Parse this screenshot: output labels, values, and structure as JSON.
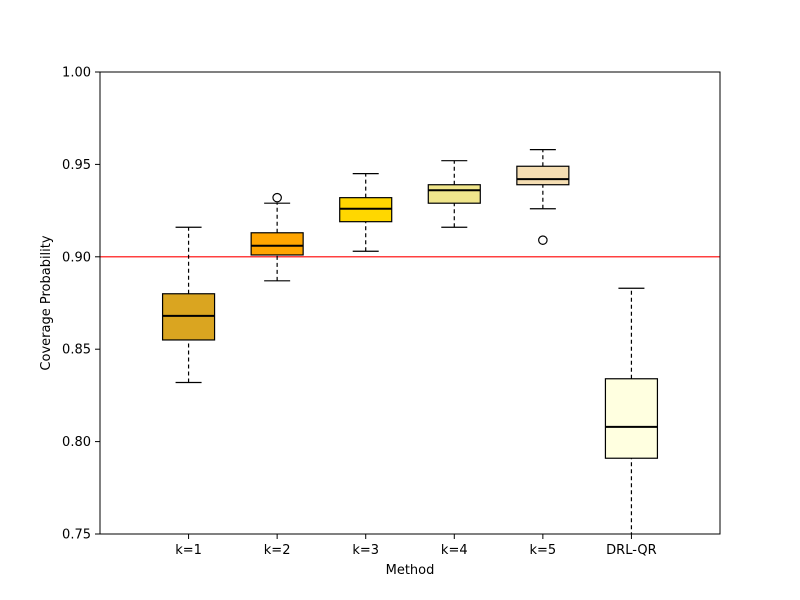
{
  "chart_data": {
    "type": "box",
    "title": "",
    "xlabel": "Method",
    "ylabel": "Coverage Probability",
    "ylim": [
      0.75,
      1.0
    ],
    "yticks": [
      0.75,
      0.8,
      0.85,
      0.9,
      0.95,
      1.0
    ],
    "ytick_labels": [
      "0.75",
      "0.80",
      "0.85",
      "0.90",
      "0.95",
      "1.00"
    ],
    "reference_line": {
      "y": 0.9,
      "color": "#ff0000"
    },
    "categories": [
      "k=1",
      "k=2",
      "k=3",
      "k=4",
      "k=5",
      "DRL-QR"
    ],
    "boxes": [
      {
        "label": "k=1",
        "whisker_low": 0.832,
        "q1": 0.855,
        "median": 0.868,
        "q3": 0.88,
        "whisker_high": 0.916,
        "outliers": [],
        "color": "#daa520"
      },
      {
        "label": "k=2",
        "whisker_low": 0.887,
        "q1": 0.901,
        "median": 0.906,
        "q3": 0.913,
        "whisker_high": 0.929,
        "outliers": [
          0.932
        ],
        "color": "#ffa500"
      },
      {
        "label": "k=3",
        "whisker_low": 0.903,
        "q1": 0.919,
        "median": 0.926,
        "q3": 0.932,
        "whisker_high": 0.945,
        "outliers": [],
        "color": "#ffd700"
      },
      {
        "label": "k=4",
        "whisker_low": 0.916,
        "q1": 0.929,
        "median": 0.936,
        "q3": 0.939,
        "whisker_high": 0.952,
        "outliers": [],
        "color": "#f0e68c"
      },
      {
        "label": "k=5",
        "whisker_low": 0.926,
        "q1": 0.939,
        "median": 0.942,
        "q3": 0.949,
        "whisker_high": 0.958,
        "outliers": [
          0.909
        ],
        "color": "#f5deb3"
      },
      {
        "label": "DRL-QR",
        "whisker_low": 0.745,
        "q1": 0.791,
        "median": 0.808,
        "q3": 0.834,
        "whisker_high": 0.883,
        "outliers": [],
        "color": "#ffffe0"
      }
    ]
  }
}
